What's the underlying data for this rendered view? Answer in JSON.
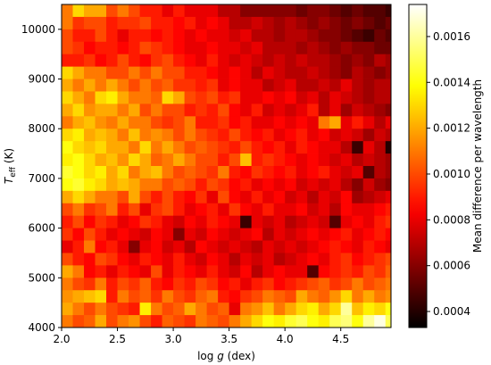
{
  "chart_data": {
    "type": "heatmap",
    "xlabel": "log g (dex)",
    "ylabel": "T_eff (K)",
    "colorbar_label": "Mean difference per wavelength",
    "colormap": "hot",
    "grid": false,
    "xlim": [
      2.0,
      4.95
    ],
    "ylim": [
      4000,
      10500
    ],
    "x_ticks": [
      "2.0",
      "2.5",
      "3.0",
      "3.5",
      "4.0",
      "4.5"
    ],
    "y_ticks": [
      "4000",
      "5000",
      "6000",
      "7000",
      "8000",
      "9000",
      "10000"
    ],
    "colorbar_ticks": [
      "0.0004",
      "0.0006",
      "0.0008",
      "0.0010",
      "0.0012",
      "0.0014",
      "0.0016"
    ],
    "color_range": [
      0.00033,
      0.00174
    ],
    "x_bins": {
      "start": 2.0,
      "step": 0.1,
      "count": 30
    },
    "y_bins": {
      "start": 4000,
      "step": 250,
      "count": 26
    },
    "values_note": "rows ordered from top (Teff 10250-10500) to bottom (Teff 4000-4250); units 1e-3",
    "values_e3": [
      [
        1.1,
        1.3,
        1.2,
        1.2,
        1.0,
        1.1,
        1.0,
        0.9,
        0.9,
        0.8,
        0.9,
        0.8,
        0.8,
        0.8,
        0.7,
        0.7,
        0.6,
        0.6,
        0.6,
        0.6,
        0.6,
        0.55,
        0.6,
        0.6,
        0.55,
        0.5,
        0.55,
        0.5,
        0.5,
        0.45
      ],
      [
        1.1,
        0.95,
        1.0,
        1.0,
        0.9,
        0.95,
        0.95,
        1.0,
        0.9,
        0.9,
        0.85,
        0.9,
        0.8,
        0.85,
        0.8,
        0.7,
        0.7,
        0.75,
        0.7,
        0.65,
        0.7,
        0.65,
        0.6,
        0.65,
        0.6,
        0.55,
        0.6,
        0.55,
        0.5,
        0.55
      ],
      [
        1.0,
        0.9,
        0.9,
        1.0,
        0.9,
        0.8,
        0.9,
        0.9,
        0.85,
        0.9,
        0.85,
        0.8,
        0.85,
        0.8,
        0.8,
        0.75,
        0.8,
        0.7,
        0.7,
        0.65,
        0.7,
        0.7,
        0.65,
        0.6,
        0.6,
        0.55,
        0.5,
        0.45,
        0.55,
        0.5
      ],
      [
        1.0,
        0.95,
        0.85,
        0.9,
        0.9,
        0.85,
        0.9,
        1.0,
        0.95,
        0.9,
        0.85,
        0.8,
        0.8,
        0.85,
        0.8,
        0.8,
        0.75,
        0.8,
        0.7,
        0.7,
        0.7,
        0.65,
        0.7,
        0.65,
        0.6,
        0.65,
        0.6,
        0.6,
        0.55,
        0.55
      ],
      [
        0.9,
        0.9,
        0.95,
        0.85,
        0.9,
        1.0,
        0.9,
        0.85,
        0.95,
        1.0,
        0.9,
        0.85,
        0.8,
        0.9,
        0.8,
        0.75,
        0.8,
        0.75,
        0.7,
        0.75,
        0.7,
        0.75,
        0.7,
        0.7,
        0.65,
        0.6,
        0.65,
        0.6,
        0.7,
        0.65
      ],
      [
        1.3,
        1.2,
        1.1,
        1.1,
        1.0,
        1.0,
        1.1,
        1.0,
        1.1,
        1.0,
        1.0,
        0.9,
        0.9,
        0.85,
        0.8,
        0.85,
        0.8,
        0.7,
        0.8,
        0.75,
        0.7,
        0.7,
        0.75,
        0.7,
        0.65,
        0.6,
        0.7,
        0.65,
        0.6,
        0.65
      ],
      [
        1.2,
        1.1,
        1.2,
        1.1,
        1.2,
        1.1,
        1.0,
        1.1,
        1.0,
        1.05,
        0.95,
        0.95,
        0.9,
        0.95,
        0.8,
        0.85,
        0.8,
        0.8,
        0.7,
        0.75,
        0.8,
        0.7,
        0.7,
        0.75,
        0.7,
        0.8,
        0.7,
        0.65,
        0.7,
        0.7
      ],
      [
        1.3,
        1.2,
        1.1,
        1.3,
        1.35,
        1.2,
        1.1,
        1.1,
        1.05,
        1.3,
        1.2,
        1.0,
        0.95,
        1.0,
        0.9,
        0.95,
        0.8,
        0.8,
        0.85,
        0.8,
        0.85,
        0.75,
        0.8,
        0.7,
        0.8,
        0.75,
        0.7,
        0.65,
        0.7,
        0.7
      ],
      [
        1.2,
        1.3,
        1.15,
        1.2,
        1.2,
        1.1,
        1.2,
        1.0,
        1.1,
        1.0,
        1.0,
        0.9,
        0.95,
        0.9,
        1.0,
        0.85,
        0.8,
        0.9,
        0.75,
        0.8,
        0.75,
        0.8,
        0.9,
        0.7,
        0.8,
        0.65,
        0.75,
        0.7,
        0.65,
        0.6
      ],
      [
        1.1,
        1.2,
        1.25,
        1.15,
        1.1,
        1.2,
        1.1,
        1.1,
        1.0,
        0.95,
        1.0,
        1.1,
        0.9,
        0.9,
        0.95,
        0.85,
        0.9,
        0.8,
        0.8,
        0.85,
        0.8,
        0.85,
        0.8,
        1.1,
        1.2,
        0.8,
        0.9,
        0.8,
        0.7,
        0.8
      ],
      [
        1.3,
        1.35,
        1.2,
        1.25,
        1.2,
        1.1,
        1.25,
        1.1,
        1.15,
        1.1,
        1.0,
        1.1,
        1.0,
        0.95,
        0.9,
        1.0,
        0.9,
        0.85,
        0.9,
        0.8,
        0.85,
        0.9,
        0.8,
        0.85,
        0.75,
        0.8,
        0.75,
        0.65,
        0.75,
        0.7
      ],
      [
        1.4,
        1.3,
        1.25,
        1.3,
        1.2,
        1.2,
        1.1,
        1.3,
        1.1,
        1.2,
        1.1,
        1.0,
        1.05,
        1.0,
        0.95,
        0.9,
        1.0,
        0.9,
        0.85,
        0.9,
        0.8,
        0.9,
        0.85,
        0.8,
        0.8,
        0.7,
        0.45,
        0.8,
        0.7,
        0.4
      ],
      [
        1.35,
        1.4,
        1.3,
        1.2,
        1.25,
        1.15,
        1.3,
        1.2,
        1.05,
        1.1,
        1.2,
        1.1,
        1.0,
        1.0,
        0.9,
        1.0,
        1.25,
        0.9,
        0.95,
        0.9,
        0.85,
        0.8,
        0.85,
        0.8,
        0.75,
        0.8,
        0.7,
        0.75,
        0.7,
        0.65
      ],
      [
        1.45,
        1.4,
        1.3,
        1.35,
        1.2,
        1.3,
        1.1,
        1.2,
        1.25,
        1.1,
        1.0,
        1.05,
        1.0,
        0.95,
        1.1,
        0.9,
        0.85,
        0.95,
        0.9,
        0.85,
        0.9,
        0.8,
        0.85,
        0.9,
        0.8,
        0.75,
        0.8,
        0.5,
        0.7,
        0.65
      ],
      [
        1.4,
        1.45,
        1.35,
        1.3,
        1.2,
        1.25,
        1.2,
        1.1,
        1.1,
        1.0,
        1.05,
        1.0,
        0.9,
        1.0,
        0.95,
        0.85,
        0.9,
        0.8,
        0.85,
        0.8,
        0.85,
        0.75,
        0.8,
        0.75,
        0.8,
        0.7,
        0.6,
        0.75,
        0.65,
        0.6
      ],
      [
        1.2,
        1.3,
        1.2,
        1.1,
        1.1,
        1.0,
        1.2,
        1.0,
        0.9,
        1.0,
        0.9,
        0.85,
        0.95,
        0.8,
        1.0,
        0.85,
        0.8,
        0.9,
        0.8,
        0.85,
        0.75,
        0.8,
        0.7,
        0.8,
        0.75,
        0.85,
        0.65,
        0.7,
        0.75,
        0.8
      ],
      [
        1.0,
        1.1,
        0.95,
        1.0,
        1.1,
        0.9,
        1.0,
        0.8,
        0.95,
        1.0,
        0.9,
        0.8,
        0.85,
        0.9,
        0.8,
        0.95,
        0.85,
        0.8,
        0.9,
        0.8,
        0.8,
        0.85,
        0.75,
        0.8,
        0.7,
        0.85,
        0.8,
        0.8,
        0.85,
        0.9
      ],
      [
        0.9,
        1.0,
        0.85,
        0.95,
        0.9,
        0.8,
        0.85,
        0.95,
        0.9,
        0.8,
        0.75,
        0.85,
        0.8,
        0.9,
        0.85,
        0.8,
        0.45,
        0.8,
        0.75,
        0.8,
        0.7,
        0.75,
        0.8,
        0.75,
        0.5,
        0.8,
        0.85,
        0.8,
        0.9,
        0.95
      ],
      [
        0.95,
        0.85,
        1.0,
        0.9,
        0.8,
        0.85,
        0.8,
        0.75,
        0.85,
        0.8,
        0.6,
        0.8,
        0.75,
        0.85,
        0.8,
        0.75,
        0.8,
        0.85,
        0.7,
        0.8,
        0.75,
        0.8,
        0.85,
        0.8,
        0.85,
        0.9,
        0.8,
        0.85,
        0.9,
        0.85
      ],
      [
        0.8,
        0.9,
        1.1,
        0.85,
        0.9,
        0.8,
        0.6,
        0.8,
        0.85,
        0.75,
        0.8,
        0.7,
        0.85,
        0.8,
        0.75,
        0.8,
        0.75,
        0.7,
        0.8,
        0.75,
        0.8,
        0.75,
        0.8,
        0.85,
        0.9,
        0.85,
        0.8,
        0.9,
        0.85,
        0.8
      ],
      [
        1.0,
        0.9,
        0.85,
        1.0,
        0.95,
        0.85,
        0.8,
        0.9,
        0.85,
        0.8,
        0.9,
        0.8,
        0.75,
        0.85,
        0.8,
        0.7,
        0.8,
        0.75,
        0.8,
        0.7,
        0.75,
        0.8,
        0.85,
        0.8,
        0.9,
        0.95,
        0.85,
        0.9,
        0.95,
        1.0
      ],
      [
        1.2,
        1.1,
        0.85,
        0.9,
        0.8,
        0.9,
        0.85,
        0.8,
        1.0,
        0.8,
        0.9,
        0.85,
        0.8,
        0.9,
        0.8,
        0.75,
        0.85,
        0.7,
        0.8,
        0.85,
        0.8,
        0.8,
        0.5,
        0.85,
        0.9,
        0.95,
        0.9,
        1.0,
        0.95,
        1.05
      ],
      [
        1.1,
        1.0,
        0.95,
        1.1,
        0.9,
        1.0,
        0.95,
        1.05,
        0.9,
        0.85,
        0.95,
        0.9,
        1.0,
        0.95,
        0.85,
        0.9,
        0.8,
        0.9,
        0.95,
        0.85,
        0.9,
        0.95,
        1.0,
        1.05,
        0.95,
        1.0,
        1.1,
        1.0,
        1.05,
        1.1
      ],
      [
        1.15,
        1.2,
        1.25,
        1.3,
        0.9,
        1.1,
        1.0,
        1.05,
        0.95,
        1.1,
        1.0,
        0.95,
        1.05,
        1.1,
        0.9,
        0.85,
        0.95,
        1.0,
        1.1,
        1.05,
        1.0,
        1.2,
        1.1,
        1.05,
        1.15,
        1.3,
        1.1,
        1.2,
        1.1,
        1.15
      ],
      [
        1.2,
        1.1,
        1.0,
        1.1,
        1.0,
        0.95,
        0.9,
        1.35,
        1.1,
        1.0,
        1.05,
        1.2,
        1.1,
        1.0,
        1.05,
        0.8,
        1.1,
        1.15,
        1.25,
        1.1,
        1.2,
        1.3,
        1.35,
        1.2,
        1.3,
        1.6,
        1.25,
        1.35,
        1.3,
        1.4
      ],
      [
        1.1,
        1.0,
        1.05,
        1.2,
        1.0,
        1.1,
        1.15,
        1.0,
        0.9,
        1.05,
        1.0,
        0.95,
        1.1,
        1.05,
        1.0,
        1.1,
        1.2,
        1.3,
        1.4,
        1.35,
        1.45,
        1.5,
        1.4,
        1.35,
        1.5,
        1.55,
        1.4,
        1.6,
        1.7,
        1.5
      ]
    ]
  }
}
